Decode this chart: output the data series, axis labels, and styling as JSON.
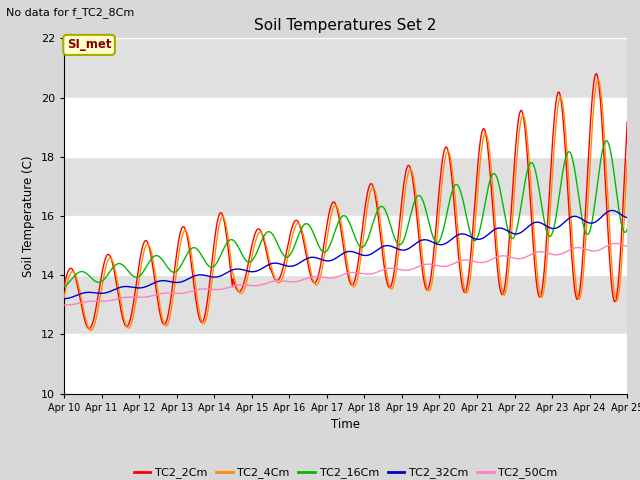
{
  "title": "Soil Temperatures Set 2",
  "subtitle": "No data for f_TC2_8Cm",
  "xlabel": "Time",
  "ylabel": "Soil Temperature (C)",
  "ylim": [
    10,
    22
  ],
  "yticks": [
    10,
    12,
    14,
    16,
    18,
    20,
    22
  ],
  "fig_bg": "#d8d8d8",
  "plot_bg": "#e0e0e0",
  "band_colors": [
    "#e8e8e8",
    "#d8d8d8"
  ],
  "legend_labels": [
    "TC2_2Cm",
    "TC2_4Cm",
    "TC2_16Cm",
    "TC2_32Cm",
    "TC2_50Cm"
  ],
  "line_colors": [
    "#ff0000",
    "#ff8c00",
    "#00bb00",
    "#0000cc",
    "#ff80c0"
  ],
  "annotation_box": "SI_met",
  "annotation_color": "#8b0000",
  "annotation_bg": "#ffffcc",
  "n_points": 720,
  "x_start": 0,
  "x_end": 15,
  "xtick_positions": [
    0,
    1,
    2,
    3,
    4,
    5,
    6,
    7,
    8,
    9,
    10,
    11,
    12,
    13,
    14,
    15
  ],
  "xtick_labels": [
    "Apr 10",
    "Apr 11",
    "Apr 12",
    "Apr 13",
    "Apr 14",
    "Apr 15",
    "Apr 16",
    "Apr 17",
    "Apr 18",
    "Apr 19",
    "Apr 20",
    "Apr 21",
    "Apr 22",
    "Apr 23",
    "Apr 24",
    "Apr 25"
  ]
}
